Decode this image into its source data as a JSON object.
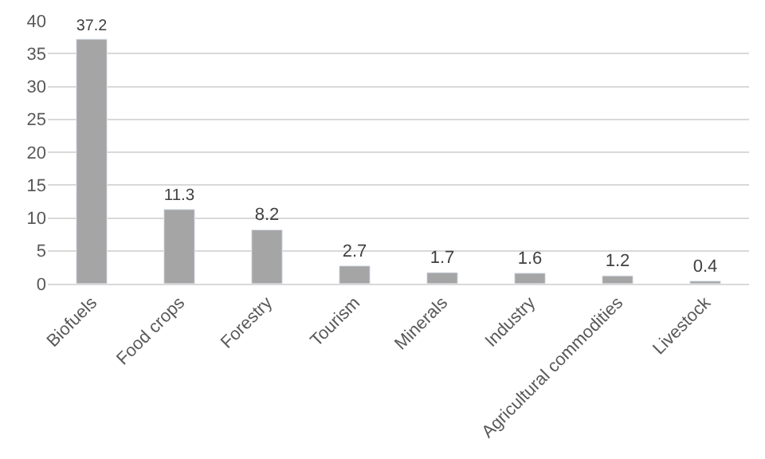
{
  "chart_data": {
    "type": "bar",
    "categories": [
      "Biofuels",
      "Food crops",
      "Forestry",
      "Tourism",
      "Minerals",
      "Industry",
      "Agricultural commodities",
      "Livestock"
    ],
    "values": [
      37.2,
      11.3,
      8.2,
      2.7,
      1.7,
      1.6,
      1.2,
      0.4
    ],
    "color": "#a5a5a5",
    "ylim": [
      0,
      40
    ],
    "yticks": [
      0,
      5,
      10,
      15,
      20,
      25,
      30,
      35,
      40
    ],
    "grid": "y",
    "data_labels": true,
    "legend": false
  }
}
